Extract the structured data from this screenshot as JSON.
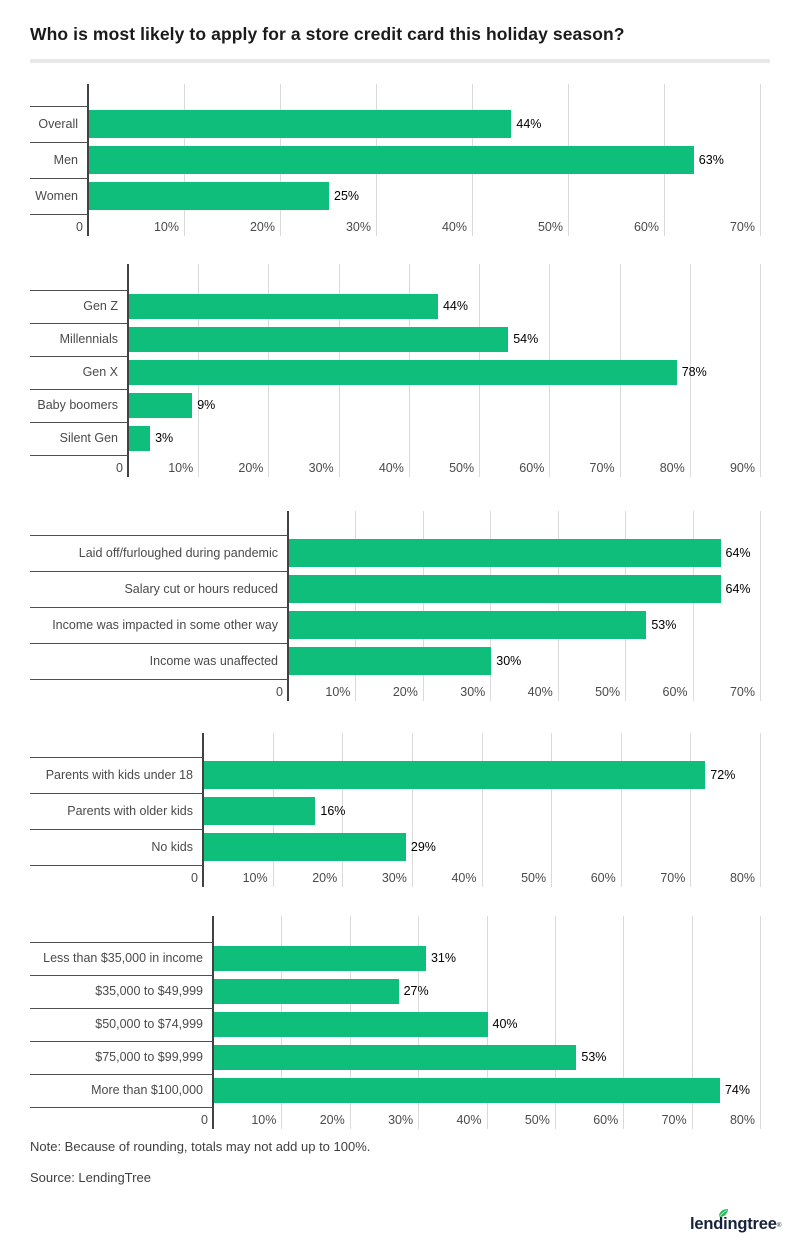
{
  "page": {
    "title": "Who is most likely to apply for a store credit card this holiday season?",
    "note": "Note: Because of rounding, totals may not add up to 100%.",
    "source": "Source: LendingTree",
    "logo_text": "lendingtree",
    "logo_registered": "®"
  },
  "colors": {
    "bar_green": "#0fbe7b",
    "leaf_green": "#2eb85c",
    "logo_navy": "#17233d",
    "grid_gray": "#dadada",
    "axis_dark": "#424242",
    "text_gray": "#4a4a4a"
  },
  "chart_data": [
    {
      "type": "bar",
      "orientation": "horizontal",
      "categories": [
        "Overall",
        "Men",
        "Women"
      ],
      "values": [
        44,
        63,
        25
      ],
      "value_labels": [
        "44%",
        "63%",
        "25%"
      ],
      "xlim": [
        0,
        70
      ],
      "tick_labels": [
        "0",
        "10%",
        "20%",
        "30%",
        "40%",
        "50%",
        "60%",
        "70%"
      ],
      "grid": true,
      "legend": "none"
    },
    {
      "type": "bar",
      "orientation": "horizontal",
      "categories": [
        "Gen Z",
        "Millennials",
        "Gen X",
        "Baby boomers",
        "Silent Gen"
      ],
      "values": [
        44,
        54,
        78,
        9,
        3
      ],
      "value_labels": [
        "44%",
        "54%",
        "78%",
        "9%",
        "3%"
      ],
      "xlim": [
        0,
        90
      ],
      "tick_labels": [
        "0",
        "10%",
        "20%",
        "30%",
        "40%",
        "50%",
        "60%",
        "70%",
        "80%",
        "90%"
      ],
      "grid": true,
      "legend": "none"
    },
    {
      "type": "bar",
      "orientation": "horizontal",
      "categories": [
        "Laid off/furloughed during pandemic",
        "Salary cut or hours reduced",
        "Income was impacted in some other way",
        "Income was unaffected"
      ],
      "values": [
        64,
        64,
        53,
        30
      ],
      "value_labels": [
        "64%",
        "64%",
        "53%",
        "30%"
      ],
      "xlim": [
        0,
        70
      ],
      "tick_labels": [
        "0",
        "10%",
        "20%",
        "30%",
        "40%",
        "50%",
        "60%",
        "70%"
      ],
      "grid": true,
      "legend": "none"
    },
    {
      "type": "bar",
      "orientation": "horizontal",
      "categories": [
        "Parents with kids under 18",
        "Parents with older kids",
        "No kids"
      ],
      "values": [
        72,
        16,
        29
      ],
      "value_labels": [
        "72%",
        "16%",
        "29%"
      ],
      "xlim": [
        0,
        80
      ],
      "tick_labels": [
        "0",
        "10%",
        "20%",
        "30%",
        "40%",
        "50%",
        "60%",
        "70%",
        "80%"
      ],
      "grid": true,
      "legend": "none"
    },
    {
      "type": "bar",
      "orientation": "horizontal",
      "categories": [
        "Less than $35,000 in income",
        "$35,000 to $49,999",
        "$50,000 to $74,999",
        "$75,000 to $99,999",
        "More than $100,000"
      ],
      "values": [
        31,
        27,
        40,
        53,
        74
      ],
      "value_labels": [
        "31%",
        "27%",
        "40%",
        "53%",
        "74%"
      ],
      "xlim": [
        0,
        80
      ],
      "tick_labels": [
        "0",
        "10%",
        "20%",
        "30%",
        "40%",
        "50%",
        "60%",
        "70%",
        "80%"
      ],
      "grid": true,
      "legend": "none"
    }
  ]
}
